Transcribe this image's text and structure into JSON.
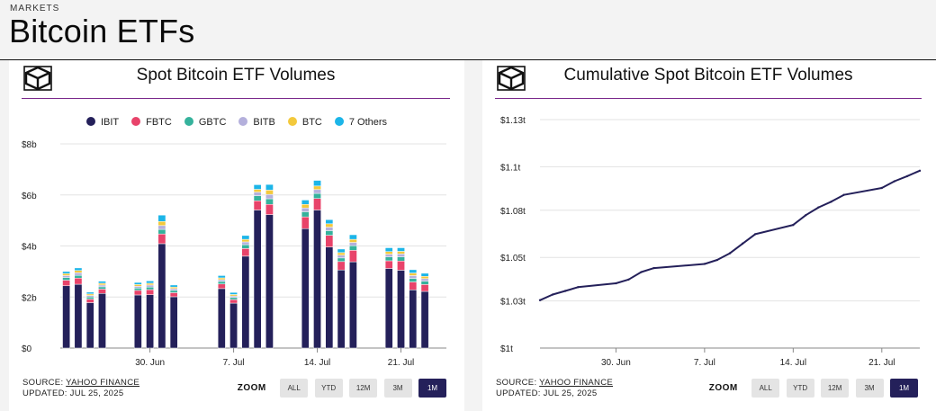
{
  "header": {
    "kicker": "MARKETS",
    "title": "Bitcoin ETFs"
  },
  "colors": {
    "IBIT": "#24205a",
    "FBTC": "#e8436a",
    "GBTC": "#35b29c",
    "BITB": "#b4b0dc",
    "BTC": "#f3c93c",
    "Others": "#1cb5e8",
    "accent_rule": "#7b2a8c"
  },
  "left_card": {
    "title": "Spot Bitcoin ETF Volumes",
    "source_label": "SOURCE:",
    "source_link": "YAHOO FINANCE",
    "updated": "UPDATED: JUL 25, 2025",
    "zoom_label": "ZOOM",
    "zoom_options": [
      "ALL",
      "YTD",
      "12M",
      "3M",
      "1M"
    ],
    "zoom_selected": "1M"
  },
  "right_card": {
    "title": "Cumulative Spot Bitcoin ETF Volumes",
    "source_label": "SOURCE:",
    "source_link": "YAHOO FINANCE",
    "updated": "UPDATED: JUL 25, 2025",
    "zoom_label": "ZOOM",
    "zoom_options": [
      "ALL",
      "YTD",
      "12M",
      "3M",
      "1M"
    ],
    "zoom_selected": "1M"
  },
  "chart_data": [
    {
      "type": "bar",
      "stacked": true,
      "title": "Spot Bitcoin ETF Volumes",
      "legend": [
        "IBIT",
        "FBTC",
        "GBTC",
        "BITB",
        "BTC",
        "7 Others"
      ],
      "x_day_range": [
        0,
        31
      ],
      "x_ticks": [
        {
          "label": "30. Jun",
          "day": 7
        },
        {
          "label": "7. Jul",
          "day": 14
        },
        {
          "label": "14. Jul",
          "day": 21
        },
        {
          "label": "21. Jul",
          "day": 28
        }
      ],
      "y_ticks": [
        "$0",
        "$2b",
        "$4b",
        "$6b",
        "$8b"
      ],
      "ylim": [
        0,
        8
      ],
      "unit": "billions USD",
      "days": [
        0,
        1,
        2,
        3,
        6,
        7,
        8,
        9,
        13,
        14,
        15,
        16,
        17,
        20,
        21,
        22,
        23,
        24,
        27,
        28,
        29,
        30
      ],
      "series": [
        {
          "name": "IBIT",
          "values": [
            2.44,
            2.5,
            1.78,
            2.14,
            2.08,
            2.09,
            4.09,
            2.01,
            2.33,
            1.76,
            3.6,
            5.41,
            5.23,
            4.68,
            5.41,
            3.96,
            3.06,
            3.38,
            3.12,
            3.05,
            2.28,
            2.22
          ]
        },
        {
          "name": "FBTC",
          "values": [
            0.22,
            0.24,
            0.14,
            0.17,
            0.18,
            0.2,
            0.38,
            0.16,
            0.18,
            0.14,
            0.3,
            0.36,
            0.4,
            0.46,
            0.45,
            0.46,
            0.33,
            0.45,
            0.3,
            0.36,
            0.31,
            0.27
          ]
        },
        {
          "name": "GBTC",
          "values": [
            0.1,
            0.11,
            0.08,
            0.09,
            0.09,
            0.1,
            0.18,
            0.09,
            0.1,
            0.08,
            0.15,
            0.2,
            0.22,
            0.2,
            0.2,
            0.18,
            0.14,
            0.18,
            0.15,
            0.16,
            0.14,
            0.13
          ]
        },
        {
          "name": "BITB",
          "values": [
            0.08,
            0.1,
            0.06,
            0.07,
            0.07,
            0.08,
            0.15,
            0.07,
            0.07,
            0.06,
            0.11,
            0.14,
            0.17,
            0.15,
            0.15,
            0.14,
            0.11,
            0.13,
            0.11,
            0.12,
            0.11,
            0.1
          ]
        },
        {
          "name": "BTC",
          "values": [
            0.08,
            0.09,
            0.06,
            0.07,
            0.07,
            0.07,
            0.16,
            0.06,
            0.07,
            0.06,
            0.1,
            0.11,
            0.17,
            0.14,
            0.14,
            0.13,
            0.1,
            0.12,
            0.1,
            0.1,
            0.1,
            0.09
          ]
        },
        {
          "name": "7 Others",
          "values": [
            0.08,
            0.1,
            0.07,
            0.08,
            0.08,
            0.09,
            0.25,
            0.08,
            0.09,
            0.08,
            0.15,
            0.18,
            0.22,
            0.17,
            0.22,
            0.16,
            0.14,
            0.18,
            0.15,
            0.14,
            0.13,
            0.12
          ]
        }
      ]
    },
    {
      "type": "line",
      "title": "Cumulative Spot Bitcoin ETF Volumes",
      "x_day_range": [
        0,
        30
      ],
      "x_ticks": [
        {
          "label": "30. Jun",
          "day": 6
        },
        {
          "label": "7. Jul",
          "day": 13
        },
        {
          "label": "14. Jul",
          "day": 20
        },
        {
          "label": "21. Jul",
          "day": 27
        }
      ],
      "y_ticks": [
        {
          "label": "$1t",
          "value": 1.0
        },
        {
          "label": "$1.03t",
          "value": 1.026
        },
        {
          "label": "$1.05t",
          "value": 1.05
        },
        {
          "label": "$1.08t",
          "value": 1.076
        },
        {
          "label": "$1.1t",
          "value": 1.1
        },
        {
          "label": "$1.13t",
          "value": 1.126
        }
      ],
      "ylim": [
        1.0,
        1.126
      ],
      "unit": "trillions USD",
      "points": [
        [
          0,
          1.0264
        ],
        [
          1,
          1.0295
        ],
        [
          2,
          1.0315
        ],
        [
          3,
          1.0336
        ],
        [
          6,
          1.0357
        ],
        [
          7,
          1.0378
        ],
        [
          8,
          1.0419
        ],
        [
          9,
          1.0441
        ],
        [
          13,
          1.0464
        ],
        [
          14,
          1.0486
        ],
        [
          15,
          1.0523
        ],
        [
          16,
          1.0576
        ],
        [
          17,
          1.0628
        ],
        [
          20,
          1.0679
        ],
        [
          21,
          1.0733
        ],
        [
          22,
          1.0776
        ],
        [
          23,
          1.0807
        ],
        [
          24,
          1.0845
        ],
        [
          27,
          1.0883
        ],
        [
          28,
          1.092
        ],
        [
          29,
          1.0948
        ],
        [
          30,
          1.0978
        ]
      ]
    }
  ]
}
